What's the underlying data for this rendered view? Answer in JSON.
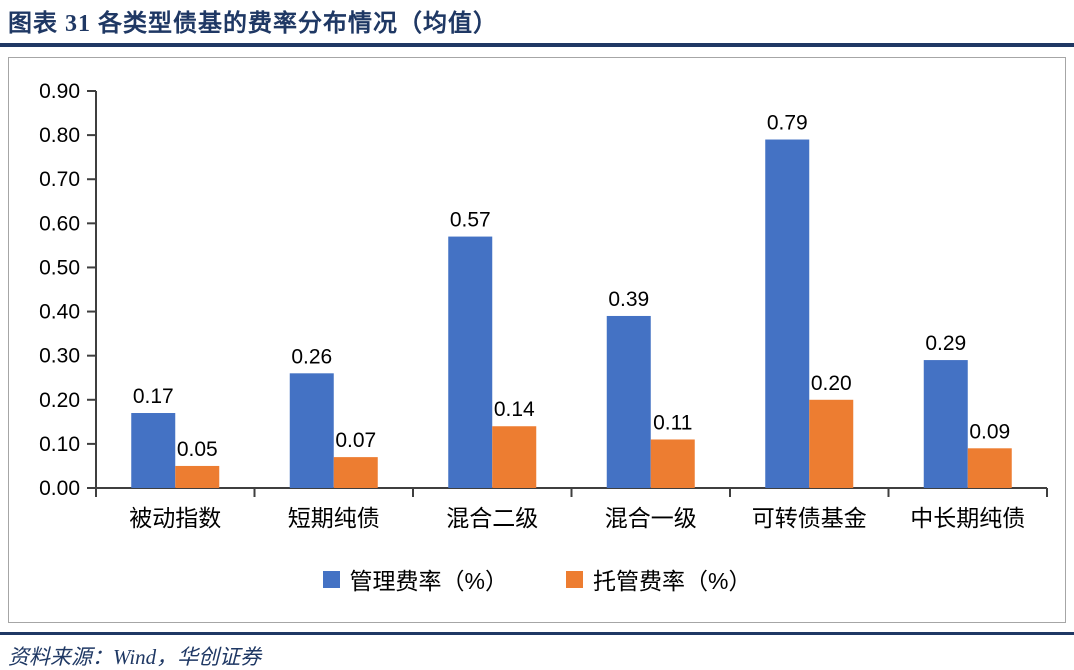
{
  "figure": {
    "title": "图表 31  各类型债基的费率分布情况（均值）",
    "source": "资料来源：Wind，华创证券"
  },
  "colors": {
    "title_navy": "#1F3864",
    "rule_navy": "#1F3864",
    "container_border": "#A6A6A6",
    "axis": "#3F3F3F",
    "label_text": "#000000"
  },
  "chart_data": {
    "type": "bar",
    "categories": [
      "被动指数",
      "短期纯债",
      "混合二级",
      "混合一级",
      "可转债基金",
      "中长期纯债"
    ],
    "series": [
      {
        "name": "管理费率（%）",
        "color": "#4472C4",
        "values": [
          0.17,
          0.26,
          0.57,
          0.39,
          0.79,
          0.29
        ]
      },
      {
        "name": "托管费率（%）",
        "color": "#ED7D31",
        "values": [
          0.05,
          0.07,
          0.14,
          0.11,
          0.2,
          0.09
        ]
      }
    ],
    "title": "",
    "xlabel": "",
    "ylabel": "",
    "ylim": [
      0,
      0.9
    ],
    "ytick_step": 0.1,
    "ytick_decimals": 2,
    "grid": false,
    "data_labels": true,
    "legend_position": "bottom"
  }
}
